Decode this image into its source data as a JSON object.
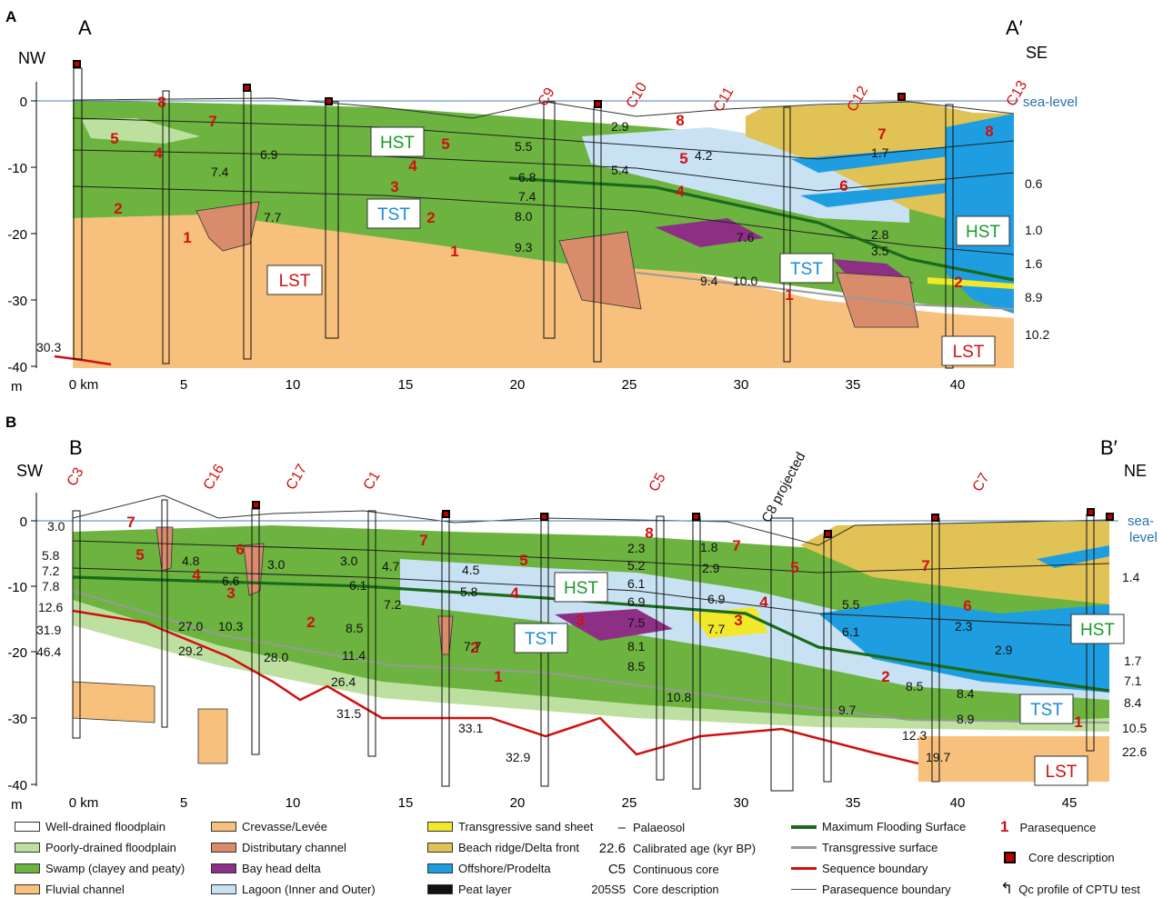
{
  "panelA": {
    "panel_letter": "A",
    "left_end": "A",
    "right_end": "A′",
    "left_dir": "NW",
    "right_dir": "SE",
    "sea_level_label": "sea-level",
    "depth_unit": "m",
    "depth_ticks": [
      "0",
      "-10",
      "-20",
      "-30",
      "-40"
    ],
    "km_ticks": [
      "0 km",
      "5",
      "10",
      "15",
      "20",
      "25",
      "30",
      "35",
      "40"
    ],
    "core_labels": [
      "C9",
      "C10",
      "C11",
      "C12",
      "C13"
    ],
    "tracts": [
      {
        "id": "hst",
        "text": "HST",
        "color": "#1a9a2a"
      },
      {
        "id": "tst",
        "text": "TST",
        "color": "#1a8ad8"
      },
      {
        "id": "lst",
        "text": "LST",
        "color": "#d01010"
      },
      {
        "id": "tst2",
        "text": "TST",
        "color": "#1a8ad8"
      },
      {
        "id": "hst2",
        "text": "HST",
        "color": "#1a9a2a"
      },
      {
        "id": "lst2",
        "text": "LST",
        "color": "#d01010"
      }
    ],
    "parasequence_numbers": [
      "8",
      "7",
      "5",
      "4",
      "2",
      "1",
      "5",
      "4",
      "3",
      "2",
      "1",
      "8",
      "5",
      "4",
      "7",
      "6",
      "8",
      "1",
      "2"
    ],
    "ages": [
      "6.9",
      "7.4",
      "7.7",
      "5.5",
      "6.8",
      "7.4",
      "8.0",
      "9.3",
      "2.9",
      "5.4",
      "4.2",
      "1.7",
      "7.6",
      "9.4",
      "10.0",
      "2.8",
      "3.5",
      "0.6",
      "1.0",
      "1.6",
      "8.9",
      "10.2",
      "30.3"
    ]
  },
  "panelB": {
    "panel_letter": "B",
    "left_end": "B",
    "right_end": "B′",
    "left_dir": "SW",
    "right_dir": "NE",
    "sea_level_label_1": "sea-",
    "sea_level_label_2": "level",
    "depth_unit": "m",
    "depth_ticks": [
      "0",
      "-10",
      "-20",
      "-30",
      "-40"
    ],
    "km_ticks": [
      "0 km",
      "5",
      "10",
      "15",
      "20",
      "25",
      "30",
      "35",
      "40",
      "45"
    ],
    "core_labels": [
      "C3",
      "C16",
      "C17",
      "C1",
      "C5",
      "C7"
    ],
    "projected_label": "C8 projected",
    "tracts": [
      {
        "id": "hst",
        "text": "HST",
        "color": "#1a9a2a"
      },
      {
        "id": "tst",
        "text": "TST",
        "color": "#1a8ad8"
      },
      {
        "id": "hst2",
        "text": "HST",
        "color": "#1a9a2a"
      },
      {
        "id": "tst2",
        "text": "TST",
        "color": "#1a8ad8"
      },
      {
        "id": "lst",
        "text": "LST",
        "color": "#d01010"
      }
    ],
    "parasequence_numbers": [
      "7",
      "5",
      "4",
      "6",
      "3",
      "2",
      "7",
      "5",
      "4",
      "3",
      "2",
      "1",
      "8",
      "7",
      "5",
      "4",
      "3",
      "7",
      "6",
      "2",
      "1"
    ],
    "ages": [
      "3.0",
      "5.8",
      "7.2",
      "7.8",
      "12.6",
      "31.9",
      "46.4",
      "4.8",
      "6.6",
      "3.0",
      "3.0",
      "4.7",
      "6.1",
      "7.2",
      "27.0",
      "10.3",
      "29.2",
      "28.0",
      "8.5",
      "11.4",
      "26.4",
      "31.5",
      "4.5",
      "5.8",
      "7.7",
      "33.1",
      "32.9",
      "2.3",
      "5.2",
      "6.1",
      "6.9",
      "7.5",
      "8.1",
      "8.5",
      "10.8",
      "1.8",
      "2.9",
      "6.9",
      "7.7",
      "5.5",
      "6.1",
      "9.7",
      "12.3",
      "19.7",
      "8.5",
      "8.4",
      "8.9",
      "2.3",
      "2.9",
      "1.4",
      "1.7",
      "7.1",
      "8.4",
      "10.5",
      "22.6"
    ]
  },
  "legend": [
    {
      "label": "Well-drained floodplain",
      "type": "swatch",
      "color": "#ffffff"
    },
    {
      "label": "Poorly-drained floodplain",
      "type": "swatch",
      "color": "#bde0a0"
    },
    {
      "label": "Swamp (clayey and peaty)",
      "type": "swatch",
      "color": "#6db33f"
    },
    {
      "label": "Fluvial channel",
      "type": "swatch",
      "color": "#f7c07c"
    },
    {
      "label": "Crevasse/Levée",
      "type": "swatch",
      "color": "#f7c07c"
    },
    {
      "label": "Distributary channel",
      "type": "swatch",
      "color": "#d98c6c"
    },
    {
      "label": "Bay head delta",
      "type": "swatch",
      "color": "#8e2f86"
    },
    {
      "label": "Lagoon (Inner and Outer)",
      "type": "swatch",
      "color": "#c8e2f4"
    },
    {
      "label": "Transgressive sand sheet",
      "type": "swatch",
      "color": "#f2e82a"
    },
    {
      "label": "Beach ridge/Delta front",
      "type": "swatch",
      "color": "#e0c255"
    },
    {
      "label": "Offshore/Prodelta",
      "type": "swatch",
      "color": "#1e9ee0"
    },
    {
      "label": "Peat layer",
      "type": "swatch",
      "color": "#111111"
    },
    {
      "label": "Palaeosol",
      "type": "symbol",
      "symbol": "‒"
    },
    {
      "label": "Calibrated age (kyr BP)",
      "type": "symbol",
      "symbol": "22.6"
    },
    {
      "label": "Continuous core",
      "type": "symbol",
      "symbol": "C5"
    },
    {
      "label": "Core description",
      "type": "symbol",
      "symbol": "205S5"
    },
    {
      "label": "Maximum Flooding Surface",
      "type": "line",
      "color": "#1a6a1a"
    },
    {
      "label": "Transgressive surface",
      "type": "line",
      "color": "#999999"
    },
    {
      "label": "Sequence boundary",
      "type": "line",
      "color": "#d01010"
    },
    {
      "label": "Parasequence boundary",
      "type": "line",
      "color": "#555555"
    },
    {
      "label": "Parasequence",
      "type": "symbol",
      "symbol": "1"
    },
    {
      "label": "Core description",
      "type": "core"
    },
    {
      "label": "Qc profile of CPTU test",
      "type": "symbol",
      "symbol": "↰"
    }
  ]
}
